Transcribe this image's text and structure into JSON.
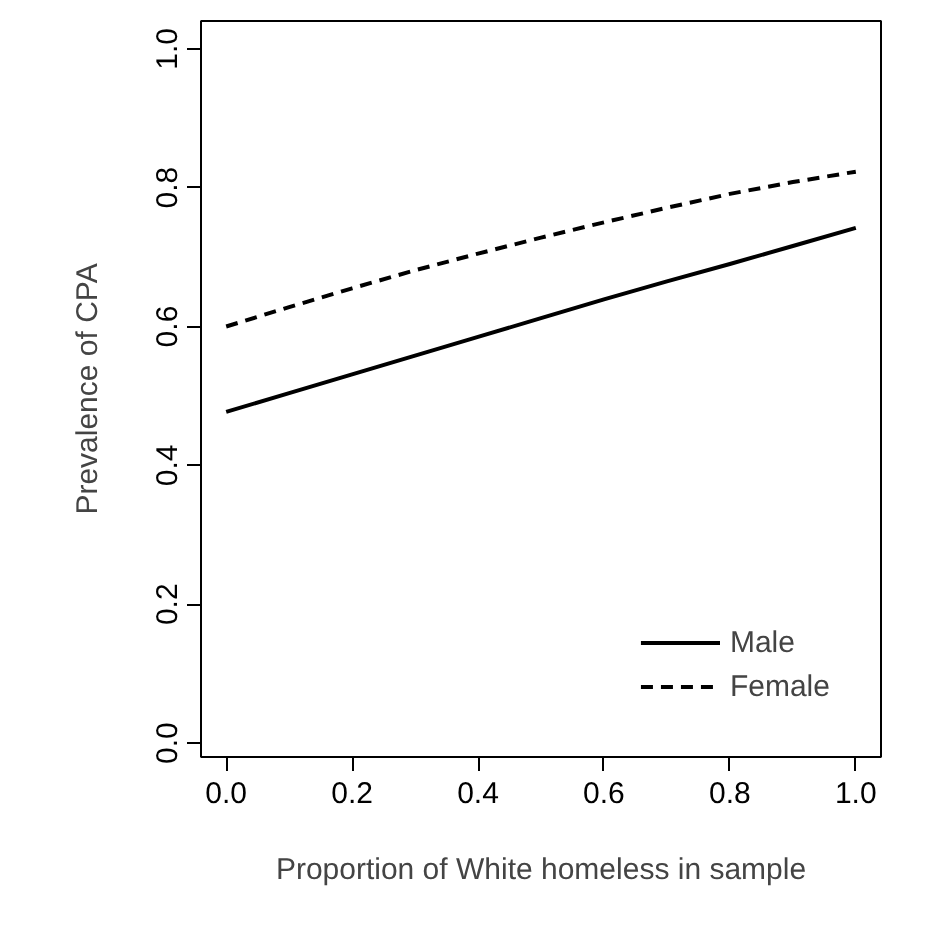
{
  "chart_data": {
    "type": "line",
    "xlabel": "Proportion of White homeless in sample",
    "ylabel": "Prevalence of CPA",
    "x": [
      0.0,
      0.1,
      0.2,
      0.3,
      0.4,
      0.5,
      0.6,
      0.7,
      0.8,
      0.9,
      1.0
    ],
    "series": [
      {
        "name": "Male",
        "color": "#000000",
        "line_style": "solid",
        "values": [
          0.477,
          0.504,
          0.531,
          0.558,
          0.585,
          0.612,
          0.639,
          0.665,
          0.69,
          0.716,
          0.742
        ]
      },
      {
        "name": "Female",
        "color": "#000000",
        "line_style": "dashed",
        "values": [
          0.6,
          0.628,
          0.655,
          0.681,
          0.705,
          0.728,
          0.75,
          0.771,
          0.791,
          0.808,
          0.823
        ]
      }
    ],
    "xlim": [
      -0.04,
      1.04
    ],
    "ylim": [
      -0.02,
      1.04
    ],
    "xticks": [
      {
        "value": 0,
        "label": "0.0"
      },
      0.2,
      0.4,
      0.6,
      0.8,
      {
        "value": 1,
        "label": "1.0"
      }
    ],
    "yticks": [
      {
        "value": 0,
        "label": "0.0"
      },
      0.2,
      0.4,
      0.6,
      0.8,
      {
        "value": 1,
        "label": "1.0"
      }
    ],
    "grid": false,
    "legend": "bottom right"
  }
}
